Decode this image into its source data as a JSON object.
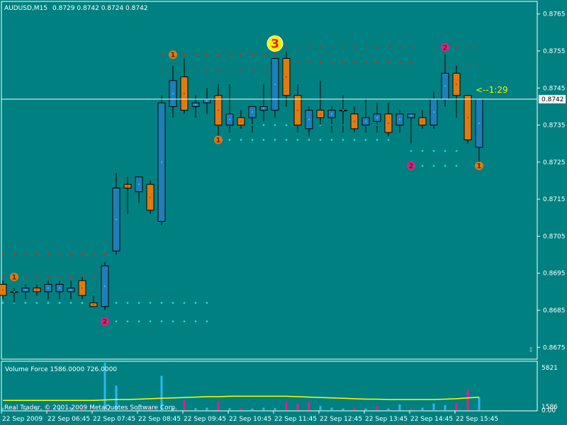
{
  "header": {
    "symbol_timeframe": "AUDUSD,M15",
    "ohlc": "0.8729 0.8742 0.8724 0.8742"
  },
  "price_axis": {
    "labels": [
      "0.8765",
      "0.8755",
      "0.8745",
      "0.8735",
      "0.8725",
      "0.8715",
      "0.8705",
      "0.8695",
      "0.8685",
      "0.8675"
    ],
    "current_price_label": "0.8742"
  },
  "time_axis": {
    "labels": [
      "22 Sep 2009",
      "22 Sep 06:45",
      "22 Sep 07:45",
      "22 Sep 08:45",
      "22 Sep 09:45",
      "22 Sep 10:45",
      "22 Sep 11:45",
      "22 Sep 12:45",
      "22 Sep 13:45",
      "22 Sep 14:45",
      "22 Sep 15:45"
    ]
  },
  "annotation": {
    "timer_text": "<--1:29"
  },
  "indicator": {
    "title": "Volume Force  1586.0000 726.0000",
    "scale_top": "5821",
    "scale_mid": "1586",
    "scale_bottom": "0.00"
  },
  "footer": {
    "copyright": "Real Trader, © 2001-2009 MetaQuotes Software Corp."
  },
  "colors": {
    "background": "#008080",
    "bull_candle": "#1e7fb8",
    "bear_candle": "#e07b10",
    "resistance_dots": "#e82020",
    "support_dots": "#22e0e0",
    "marker_orange": "#e07b10",
    "marker_magenta": "#e0208a",
    "marker_yellow": "#ffee00",
    "volume_line": "#ffff00",
    "volume_up": "#2ab8f0",
    "volume_down": "#e0208a",
    "text": "#ffffff"
  },
  "chart_data": {
    "type": "candlestick",
    "symbol": "AUDUSD",
    "timeframe": "M15",
    "ylim": [
      0.8672,
      0.8768
    ],
    "candles": [
      {
        "o": 0.8692,
        "h": 0.8693,
        "l": 0.8688,
        "c": 0.8689
      },
      {
        "o": 0.869,
        "h": 0.8691,
        "l": 0.8687,
        "c": 0.869
      },
      {
        "o": 0.869,
        "h": 0.8692,
        "l": 0.8688,
        "c": 0.8691
      },
      {
        "o": 0.8691,
        "h": 0.8692,
        "l": 0.8689,
        "c": 0.869
      },
      {
        "o": 0.869,
        "h": 0.8693,
        "l": 0.8688,
        "c": 0.8692
      },
      {
        "o": 0.869,
        "h": 0.8693,
        "l": 0.8688,
        "c": 0.8692
      },
      {
        "o": 0.869,
        "h": 0.8693,
        "l": 0.8688,
        "c": 0.8691
      },
      {
        "o": 0.8693,
        "h": 0.8694,
        "l": 0.8688,
        "c": 0.8689
      },
      {
        "o": 0.8687,
        "h": 0.8689,
        "l": 0.8686,
        "c": 0.8686
      },
      {
        "o": 0.8686,
        "h": 0.8698,
        "l": 0.8685,
        "c": 0.8697
      },
      {
        "o": 0.8701,
        "h": 0.8722,
        "l": 0.87,
        "c": 0.8718
      },
      {
        "o": 0.8719,
        "h": 0.8721,
        "l": 0.8711,
        "c": 0.8718
      },
      {
        "o": 0.8717,
        "h": 0.8721,
        "l": 0.8714,
        "c": 0.8721
      },
      {
        "o": 0.8719,
        "h": 0.872,
        "l": 0.8711,
        "c": 0.8712
      },
      {
        "o": 0.8709,
        "h": 0.8743,
        "l": 0.8708,
        "c": 0.8741
      },
      {
        "o": 0.874,
        "h": 0.8751,
        "l": 0.8737,
        "c": 0.8747
      },
      {
        "o": 0.8748,
        "h": 0.8753,
        "l": 0.8738,
        "c": 0.8739
      },
      {
        "o": 0.874,
        "h": 0.8743,
        "l": 0.8737,
        "c": 0.8741
      },
      {
        "o": 0.8741,
        "h": 0.8745,
        "l": 0.8738,
        "c": 0.8742
      },
      {
        "o": 0.8743,
        "h": 0.8746,
        "l": 0.8732,
        "c": 0.8735
      },
      {
        "o": 0.8735,
        "h": 0.8746,
        "l": 0.8733,
        "c": 0.8738
      },
      {
        "o": 0.8737,
        "h": 0.8739,
        "l": 0.8734,
        "c": 0.8735
      },
      {
        "o": 0.8737,
        "h": 0.874,
        "l": 0.8733,
        "c": 0.874
      },
      {
        "o": 0.8739,
        "h": 0.8746,
        "l": 0.8736,
        "c": 0.874
      },
      {
        "o": 0.8739,
        "h": 0.8753,
        "l": 0.8737,
        "c": 0.8753
      },
      {
        "o": 0.8753,
        "h": 0.8755,
        "l": 0.874,
        "c": 0.8743
      },
      {
        "o": 0.8743,
        "h": 0.8746,
        "l": 0.8733,
        "c": 0.8735
      },
      {
        "o": 0.8734,
        "h": 0.874,
        "l": 0.8732,
        "c": 0.8739
      },
      {
        "o": 0.8739,
        "h": 0.8747,
        "l": 0.8735,
        "c": 0.8737
      },
      {
        "o": 0.8737,
        "h": 0.874,
        "l": 0.8733,
        "c": 0.8739
      },
      {
        "o": 0.8739,
        "h": 0.8743,
        "l": 0.8733,
        "c": 0.8739
      },
      {
        "o": 0.8738,
        "h": 0.874,
        "l": 0.8733,
        "c": 0.8734
      },
      {
        "o": 0.8735,
        "h": 0.8742,
        "l": 0.8733,
        "c": 0.8737
      },
      {
        "o": 0.8736,
        "h": 0.8741,
        "l": 0.8733,
        "c": 0.8738
      },
      {
        "o": 0.8738,
        "h": 0.8741,
        "l": 0.8732,
        "c": 0.8733
      },
      {
        "o": 0.8735,
        "h": 0.8739,
        "l": 0.8733,
        "c": 0.8738
      },
      {
        "o": 0.8737,
        "h": 0.8738,
        "l": 0.873,
        "c": 0.8738
      },
      {
        "o": 0.8737,
        "h": 0.8739,
        "l": 0.8734,
        "c": 0.8735
      },
      {
        "o": 0.8735,
        "h": 0.8744,
        "l": 0.8734,
        "c": 0.8742
      },
      {
        "o": 0.8742,
        "h": 0.8754,
        "l": 0.874,
        "c": 0.8749
      },
      {
        "o": 0.8749,
        "h": 0.8751,
        "l": 0.8737,
        "c": 0.8743
      },
      {
        "o": 0.8743,
        "h": 0.8743,
        "l": 0.873,
        "c": 0.8731
      },
      {
        "o": 0.8729,
        "h": 0.8742,
        "l": 0.8724,
        "c": 0.8742
      }
    ],
    "resistance_levels": [
      {
        "from": 0,
        "to": 9,
        "price": 0.87
      },
      {
        "from": 0,
        "to": 9,
        "price": 0.8694
      },
      {
        "from": 14,
        "to": 24,
        "price": 0.8754
      },
      {
        "from": 14,
        "to": 24,
        "price": 0.875
      },
      {
        "from": 25,
        "to": 36,
        "price": 0.8756
      },
      {
        "from": 25,
        "to": 36,
        "price": 0.8752
      },
      {
        "from": 39,
        "to": 42,
        "price": 0.8756
      },
      {
        "from": 39,
        "to": 42,
        "price": 0.8751
      }
    ],
    "support_levels": [
      {
        "from": 0,
        "to": 18,
        "price": 0.8687
      },
      {
        "from": 9,
        "to": 18,
        "price": 0.8682
      },
      {
        "from": 19,
        "to": 34,
        "price": 0.8735
      },
      {
        "from": 19,
        "to": 34,
        "price": 0.8731
      },
      {
        "from": 36,
        "to": 40,
        "price": 0.8728
      },
      {
        "from": 36,
        "to": 40,
        "price": 0.8724
      }
    ],
    "markers": [
      {
        "label": "1",
        "index": 1,
        "price": 0.8694,
        "color": "orange"
      },
      {
        "label": "2",
        "index": 9,
        "price": 0.8682,
        "color": "magenta"
      },
      {
        "label": "1",
        "index": 15,
        "price": 0.8754,
        "color": "orange"
      },
      {
        "label": "1",
        "index": 19,
        "price": 0.8731,
        "color": "orange"
      },
      {
        "label": "3",
        "index": 24,
        "price": 0.8757,
        "color": "yellow"
      },
      {
        "label": "2",
        "index": 36,
        "price": 0.8724,
        "color": "magenta"
      },
      {
        "label": "2",
        "index": 39,
        "price": 0.8756,
        "color": "magenta"
      },
      {
        "label": "1",
        "index": 42,
        "price": 0.8724,
        "color": "orange"
      }
    ],
    "current_price": 0.8742,
    "volume": {
      "ylim": [
        0,
        5821
      ],
      "bars": [
        300,
        250,
        280,
        260,
        300,
        280,
        300,
        280,
        200,
        5821,
        3000,
        200,
        200,
        250,
        4200,
        250,
        1200,
        250,
        300,
        1100,
        250,
        250,
        200,
        300,
        250,
        1000,
        800,
        1000,
        500,
        300,
        200,
        300,
        200,
        500,
        200,
        700,
        200,
        300,
        800,
        600,
        900,
        2500,
        1586
      ],
      "bar_colors": [
        "up",
        "down",
        "up",
        "up",
        "down",
        "up",
        "up",
        "down",
        "down",
        "up",
        "up",
        "down",
        "up",
        "down",
        "up",
        "up",
        "down",
        "up",
        "up",
        "down",
        "up",
        "down",
        "up",
        "up",
        "up",
        "down",
        "down",
        "down",
        "up",
        "up",
        "up",
        "down",
        "up",
        "down",
        "up",
        "up",
        "down",
        "up",
        "up",
        "up",
        "down",
        "down",
        "up"
      ],
      "line": [
        1200,
        1200,
        1200,
        1200,
        1200,
        1200,
        1200,
        1200,
        1200,
        1250,
        1300,
        1300,
        1350,
        1400,
        1450,
        1500,
        1550,
        1600,
        1650,
        1650,
        1700,
        1700,
        1700,
        1700,
        1700,
        1700,
        1650,
        1600,
        1550,
        1500,
        1450,
        1400,
        1350,
        1350,
        1300,
        1300,
        1300,
        1300,
        1300,
        1350,
        1400,
        1500,
        1586
      ]
    }
  }
}
